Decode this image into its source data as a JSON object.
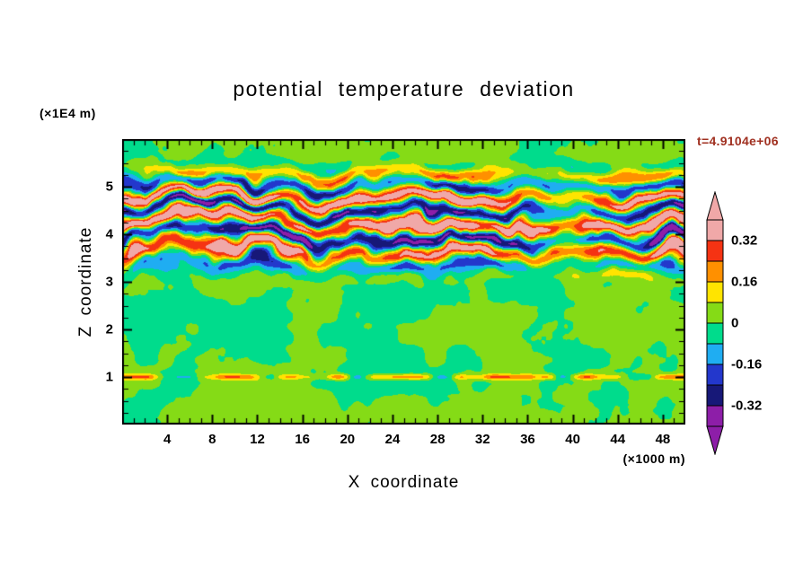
{
  "page": {
    "background": "#FFFFFF"
  },
  "chart_data": {
    "type": "heatmap",
    "title": "potential temperature deviation",
    "xlabel": "X coordinate",
    "ylabel": "Z coordinate",
    "x_unit_label": "(×1000 m)",
    "y_unit_label": "(×1E4 m)",
    "timestamp_label": "t=4.9104e+06",
    "timestamp_color": "#A03020",
    "axes": {
      "x_range": [
        0,
        50
      ],
      "z_range": [
        0,
        6
      ],
      "x_major_ticks": [
        4,
        8,
        12,
        16,
        20,
        24,
        28,
        32,
        36,
        40,
        44,
        48
      ],
      "x_minor_step": 1,
      "z_major_ticks": [
        1,
        2,
        3,
        4,
        5
      ],
      "z_minor_step": 0.25,
      "frame_color": "#000000"
    },
    "colorbar": {
      "tick_labels": [
        "0.32",
        "0.16",
        "0",
        "-0.16",
        "-0.32"
      ],
      "tick_values": [
        0.32,
        0.16,
        0,
        -0.16,
        -0.32
      ],
      "interval": 0.08,
      "value_boundaries": [
        0.32,
        0.24,
        0.16,
        0.08,
        0,
        -0.08,
        -0.16,
        -0.24,
        -0.32
      ],
      "colors_top_to_bottom": [
        "#F0A8A8",
        "#F53313",
        "#FF9000",
        "#FFE400",
        "#85DB16",
        "#00DC8C",
        "#1FADF2",
        "#2337CC",
        "#171878",
        "#8D1EA8"
      ],
      "arrow_top_color": "#F0A8A8",
      "arrow_bottom_color": "#8D1EA8"
    },
    "field_structure": {
      "background_amplitude": 0.115,
      "background_bias": 0.008,
      "breaking_band": {
        "z_center": 4.28,
        "z_halfwidth": 1.12,
        "layer_wavenumber": 11.0,
        "amp_base": 0.24,
        "amp_var": 0.2,
        "amp_scale": 1.35
      },
      "thin_band": {
        "z_center": 1.0,
        "z_halfwidth": 0.06,
        "bias": 0.08,
        "amplitude": 0.16
      }
    }
  }
}
